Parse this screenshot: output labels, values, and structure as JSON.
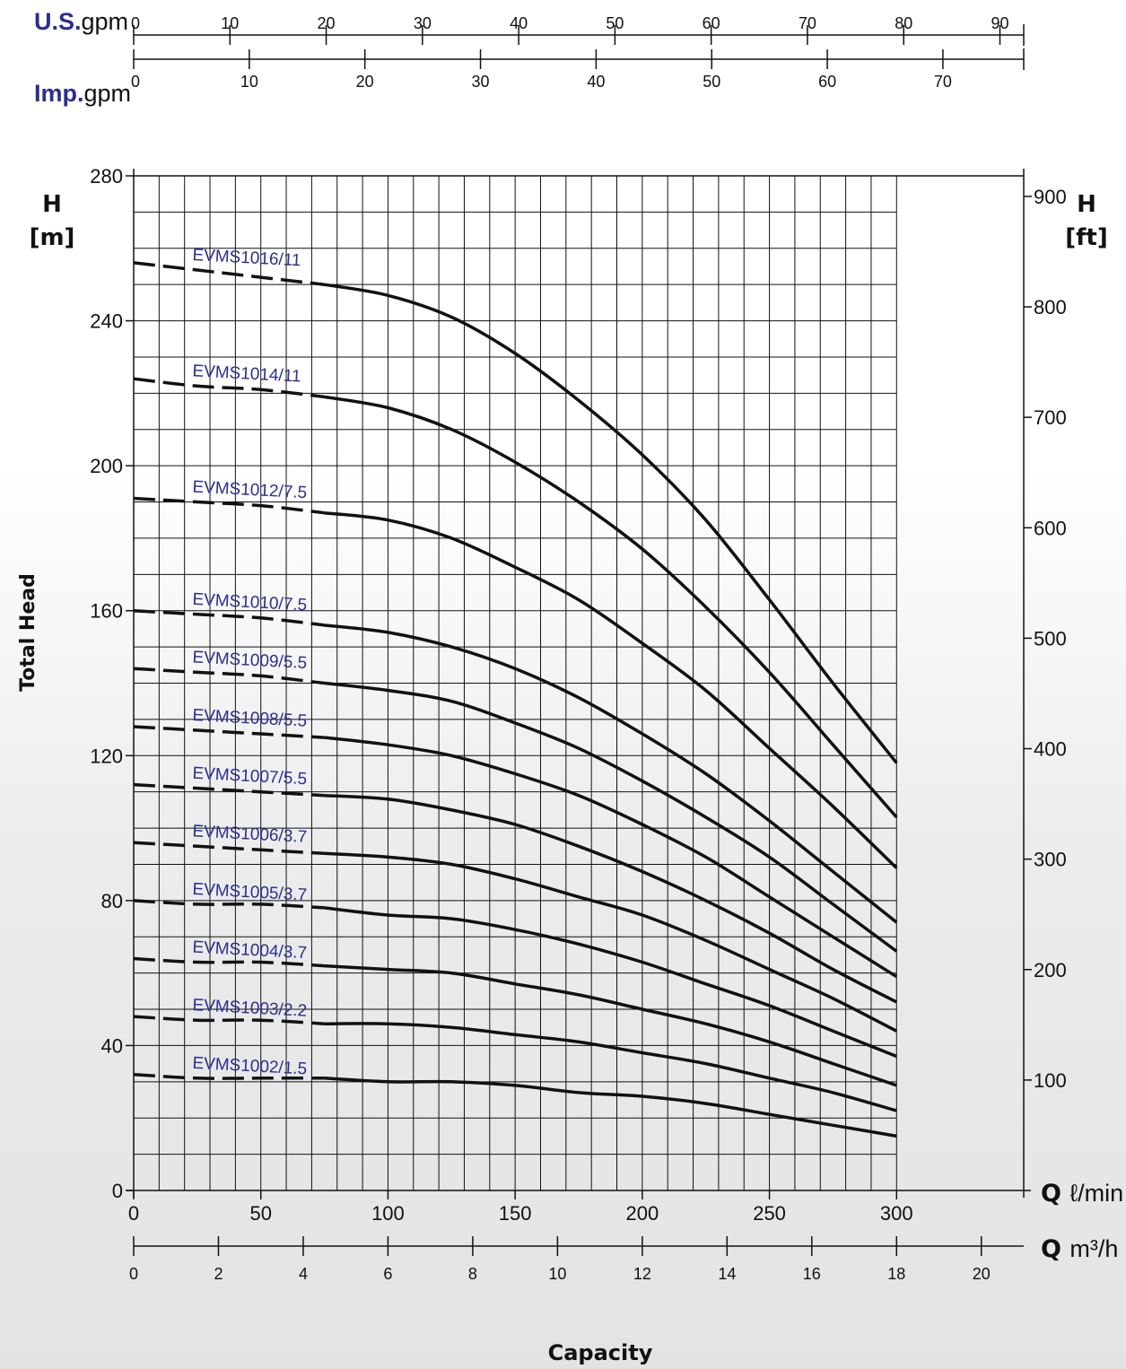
{
  "chart_data": {
    "type": "line",
    "colors": {
      "curve": "#111111",
      "label": "#2b2f8f",
      "grid": "#111111"
    },
    "y_axis": {
      "label": "Total Head",
      "title": "H",
      "unit": "[m]",
      "range": [
        0,
        280
      ],
      "ticks": [
        0,
        40,
        80,
        120,
        160,
        200,
        240,
        280
      ]
    },
    "y_axis_right": {
      "title": "H",
      "unit": "[ft]",
      "ticks": [
        100,
        200,
        300,
        400,
        500,
        600,
        700,
        800,
        900
      ]
    },
    "x_axis": {
      "label": "Capacity",
      "symbol": "Q",
      "unit": "ℓ/min",
      "range": [
        0,
        350
      ],
      "ticks": [
        0,
        50,
        100,
        150,
        200,
        250,
        300
      ]
    },
    "x_axis_m3h": {
      "symbol": "Q",
      "unit": "m³/h",
      "ticks": [
        0,
        2,
        4,
        6,
        8,
        10,
        12,
        14,
        16,
        18,
        20
      ]
    },
    "x_axis_usgpm": {
      "brand": "U.S.",
      "unit": "gpm",
      "ticks": [
        0,
        10,
        20,
        30,
        40,
        50,
        60,
        70,
        80,
        90
      ]
    },
    "x_axis_impgpm": {
      "brand": "Imp.",
      "unit": "gpm",
      "ticks": [
        0,
        10,
        20,
        30,
        40,
        50,
        60,
        70
      ]
    },
    "grid": true,
    "series": [
      {
        "name": "EVMS1016/11",
        "x": [
          0,
          25,
          50,
          75,
          100,
          125,
          150,
          175,
          200,
          225,
          250,
          275,
          300
        ],
        "y": [
          256,
          254,
          252,
          250,
          247,
          241,
          231,
          218,
          203,
          185,
          163,
          140,
          118
        ]
      },
      {
        "name": "EVMS1014/11",
        "x": [
          0,
          25,
          50,
          75,
          100,
          125,
          150,
          175,
          200,
          225,
          250,
          275,
          300
        ],
        "y": [
          224,
          222,
          221,
          219,
          216,
          210,
          201,
          190,
          177,
          161,
          143,
          123,
          103
        ]
      },
      {
        "name": "EVMS1012/7.5",
        "x": [
          0,
          25,
          50,
          75,
          100,
          125,
          150,
          175,
          200,
          225,
          250,
          275,
          300
        ],
        "y": [
          191,
          190,
          189,
          187,
          185,
          180,
          172,
          163,
          151,
          138,
          122,
          106,
          89
        ]
      },
      {
        "name": "EVMS1010/7.5",
        "x": [
          0,
          25,
          50,
          75,
          100,
          125,
          150,
          175,
          200,
          225,
          250,
          275,
          300
        ],
        "y": [
          160,
          159,
          158,
          156,
          154,
          150,
          144,
          136,
          126,
          115,
          102,
          88,
          74
        ]
      },
      {
        "name": "EVMS1009/5.5",
        "x": [
          0,
          25,
          50,
          75,
          100,
          125,
          150,
          175,
          200,
          225,
          250,
          275,
          300
        ],
        "y": [
          144,
          143,
          142,
          140,
          138,
          135,
          129,
          122,
          113,
          103,
          92,
          79,
          66
        ]
      },
      {
        "name": "EVMS1008/5.5",
        "x": [
          0,
          25,
          50,
          75,
          100,
          125,
          150,
          175,
          200,
          225,
          250,
          275,
          300
        ],
        "y": [
          128,
          127,
          126,
          125,
          123,
          120,
          115,
          109,
          101,
          92,
          81,
          70,
          59
        ]
      },
      {
        "name": "EVMS1007/5.5",
        "x": [
          0,
          25,
          50,
          75,
          100,
          125,
          150,
          175,
          200,
          225,
          250,
          275,
          300
        ],
        "y": [
          112,
          111,
          110,
          109,
          108,
          105,
          101,
          95,
          88,
          80,
          71,
          61,
          52
        ]
      },
      {
        "name": "EVMS1006/3.7",
        "x": [
          0,
          25,
          50,
          75,
          100,
          125,
          150,
          175,
          200,
          225,
          250,
          275,
          300
        ],
        "y": [
          96,
          95,
          94,
          93,
          92,
          90,
          86,
          81,
          76,
          69,
          61,
          53,
          44
        ]
      },
      {
        "name": "EVMS1005/3.7",
        "x": [
          0,
          25,
          50,
          75,
          100,
          125,
          150,
          175,
          200,
          225,
          250,
          275,
          300
        ],
        "y": [
          80,
          79,
          79,
          78,
          76,
          75,
          72,
          68,
          63,
          57,
          51,
          44,
          37
        ]
      },
      {
        "name": "EVMS1004/3.7",
        "x": [
          0,
          25,
          50,
          75,
          100,
          125,
          150,
          175,
          200,
          225,
          250,
          275,
          300
        ],
        "y": [
          64,
          63,
          63,
          62,
          61,
          60,
          57,
          54,
          50,
          46,
          41,
          35,
          29
        ]
      },
      {
        "name": "EVMS1003/2.2",
        "x": [
          0,
          25,
          50,
          75,
          100,
          125,
          150,
          175,
          200,
          225,
          250,
          275,
          300
        ],
        "y": [
          48,
          47,
          47,
          46,
          46,
          45,
          43,
          41,
          38,
          35,
          31,
          27,
          22
        ]
      },
      {
        "name": "EVMS1002/1.5",
        "x": [
          0,
          25,
          50,
          75,
          100,
          125,
          150,
          175,
          200,
          225,
          250,
          275,
          300
        ],
        "y": [
          32,
          31,
          31,
          31,
          30,
          30,
          29,
          27,
          26,
          24,
          21,
          18,
          15
        ]
      }
    ]
  }
}
